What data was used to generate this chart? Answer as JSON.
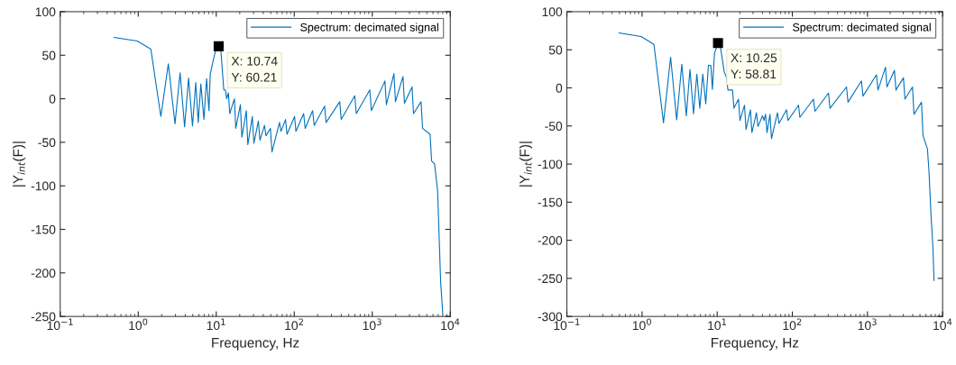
{
  "chart_data": [
    {
      "type": "line",
      "xlabel": "Frequency, Hz",
      "ylabel": "|Y$_{int}$(F)|",
      "log": "x",
      "legend": "top right",
      "grid": false,
      "marker": "none",
      "line_style": "solid",
      "xlim": [
        0.1,
        10000
      ],
      "xticks": [
        {
          "value": 0.1,
          "label": "10$^{−1}$"
        },
        {
          "value": 1,
          "label": "10$^{0}$"
        },
        {
          "value": 10,
          "label": "10$^{1}$"
        },
        {
          "value": 100,
          "label": "10$^{2}$"
        },
        {
          "value": 1000,
          "label": "10$^{3}$"
        },
        {
          "value": 10000,
          "label": "10$^{4}$"
        }
      ],
      "ylim": [
        -250,
        100
      ],
      "yticks": [
        -250,
        -200,
        -150,
        -100,
        -50,
        0,
        50,
        100
      ],
      "annotations": [
        {
          "text": "X: 10.74\nY: 60.21",
          "x": 10.74,
          "y": 60.21
        }
      ],
      "series": [
        {
          "name": "Spectrum: decimated signal",
          "color": "#0072bd",
          "x": [
            0.49,
            0.97,
            1.45,
            1.95,
            2.43,
            2.96,
            3.44,
            3.93,
            4.42,
            4.96,
            5.46,
            5.87,
            6.35,
            6.95,
            7.52,
            8.07,
            8.37,
            9.15,
            10.0,
            10.74,
            11.4,
            12.5,
            13.1,
            13.6,
            14.3,
            14.9,
            17.1,
            17.8,
            20.4,
            21.3,
            24.3,
            25.4,
            29.0,
            30.4,
            34.7,
            36.3,
            41.5,
            43.4,
            49.5,
            51.8,
            64.7,
            67.6,
            77.3,
            80.8,
            101,
            105,
            132,
            138,
            172,
            180,
            245,
            256,
            383,
            400,
            597,
            624,
            931,
            973,
            1452,
            1517,
            1897,
            1982,
            2477,
            2588,
            3236,
            3381,
            4220,
            4415,
            5510,
            5763,
            6295,
            6890,
            7520,
            8010
          ],
          "values": [
            70.4,
            66.3,
            57.1,
            -20.4,
            40.1,
            -28.9,
            29.9,
            -32.3,
            23.8,
            -31.3,
            18.7,
            -27.2,
            17,
            -23.8,
            23.1,
            -13.6,
            27.9,
            44.2,
            57.8,
            60.21,
            57.8,
            10.2,
            10.2,
            0,
            6.8,
            -17.0,
            0,
            -34.0,
            -6.8,
            -44.2,
            -13.6,
            -52.7,
            -20.4,
            -51.0,
            -25.5,
            -47.6,
            -30.6,
            -42.5,
            -34.0,
            -61.2,
            -27.2,
            -37.4,
            -23.8,
            -40.8,
            -20.4,
            -37.4,
            -17.0,
            -34.0,
            -13.6,
            -30.6,
            -8.5,
            -27.2,
            -3.4,
            -23.8,
            3.4,
            -17.0,
            10.2,
            -13.6,
            20.4,
            -6.8,
            28.9,
            -3.4,
            25.5,
            -5.1,
            13.6,
            -17.0,
            -3.4,
            -34.0,
            -40.8,
            -71.4,
            -74.8,
            -106.5,
            -209.6,
            -247
          ]
        }
      ]
    },
    {
      "type": "line",
      "xlabel": "Frequency, Hz",
      "ylabel": "|Y$_{int}$(F)|",
      "log": "x",
      "legend": "top right",
      "grid": false,
      "marker": "none",
      "line_style": "solid",
      "xlim": [
        0.1,
        10000
      ],
      "xticks": [
        {
          "value": 0.1,
          "label": "10$^{−1}$"
        },
        {
          "value": 1,
          "label": "10$^{0}$"
        },
        {
          "value": 10,
          "label": "10$^{1}$"
        },
        {
          "value": 100,
          "label": "10$^{2}$"
        },
        {
          "value": 1000,
          "label": "10$^{3}$"
        },
        {
          "value": 10000,
          "label": "10$^{4}$"
        }
      ],
      "ylim": [
        -300,
        100
      ],
      "yticks": [
        -300,
        -250,
        -200,
        -150,
        -100,
        -50,
        0,
        50,
        100
      ],
      "annotations": [
        {
          "text": "X: 10.25\nY: 58.81",
          "x": 10.25,
          "y": 58.81
        }
      ],
      "series": [
        {
          "name": "Spectrum: decimated signal",
          "color": "#0072bd",
          "x": [
            0.495,
            0.97,
            1.44,
            1.93,
            2.4,
            2.89,
            3.38,
            3.88,
            4.34,
            4.84,
            5.36,
            5.87,
            6.43,
            7.05,
            7.65,
            8.24,
            8.63,
            9.2,
            10.25,
            11.07,
            12.4,
            13.3,
            13.9,
            16.0,
            16.7,
            19.2,
            20.1,
            23.1,
            24.2,
            27.7,
            29.0,
            33.3,
            34.9,
            40.1,
            42.0,
            44.0,
            46.0,
            50.4,
            52.8,
            63.4,
            66.4,
            83.6,
            87.5,
            121,
            126,
            191,
            200,
            303,
            317,
            526,
            551,
            832,
            871,
            1318,
            1380,
            1738,
            1816,
            2286,
            2393,
            3013,
            3155,
            3972,
            4159,
            5236,
            5483,
            6281,
            6577,
            7015,
            7413,
            7690
          ],
          "values": [
            72.2,
            67.4,
            57.1,
            -45.9,
            40.3,
            -41.9,
            31.1,
            -36.7,
            24.3,
            -33.9,
            18.0,
            -26.7,
            18.0,
            -20.8,
            29.9,
            29.1,
            -2.0,
            45.1,
            58.81,
            53.1,
            21.1,
            13.2,
            -2.8,
            -2.8,
            -26.7,
            -14.8,
            -42.7,
            -22.7,
            -54.7,
            -28.7,
            -58.7,
            -32.7,
            -50.7,
            -36.7,
            -42.7,
            -34.7,
            -58.7,
            -34.7,
            -66.6,
            -32.7,
            -46.7,
            -28.7,
            -42.7,
            -22.7,
            -38.7,
            -14.8,
            -30.7,
            -6.8,
            -26.7,
            1.2,
            -18.8,
            9.2,
            -10.8,
            17.2,
            -2.8,
            27.1,
            1.2,
            23.1,
            -2.8,
            13.2,
            -14.8,
            1.2,
            -34.7,
            -18.8,
            -62.6,
            -80,
            -108.6,
            -167.8,
            -207.2,
            -252.7
          ]
        }
      ]
    }
  ]
}
